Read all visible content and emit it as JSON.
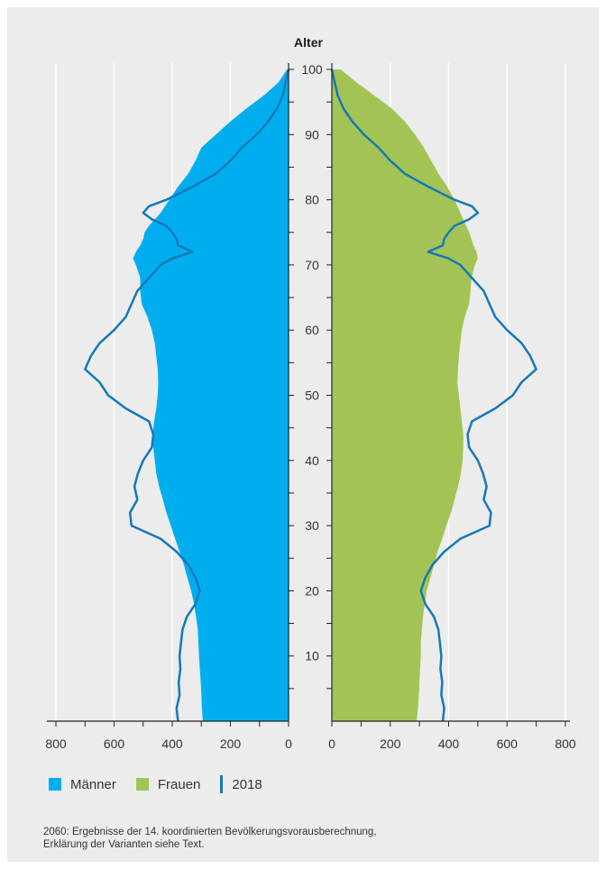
{
  "chart_data": {
    "type": "area",
    "ylabel": "Alter",
    "y_ticks_labeled": [
      10,
      20,
      30,
      40,
      50,
      60,
      70,
      80,
      90,
      100
    ],
    "ylim": [
      0,
      100
    ],
    "xlim_left": [
      800,
      0
    ],
    "xlim_right": [
      0,
      800
    ],
    "x_ticks_left": [
      "800",
      "600",
      "400",
      "200",
      "0"
    ],
    "x_ticks_right": [
      "0",
      "200",
      "400",
      "600",
      "800"
    ],
    "grid": "vertical",
    "legend_position": "bottom-left",
    "series": [
      {
        "name": "Männer",
        "side": "left",
        "kind": "area",
        "color": "#00aeef",
        "ages": [
          0,
          2,
          4,
          6,
          8,
          10,
          12,
          14,
          16,
          18,
          20,
          22,
          24,
          26,
          28,
          30,
          32,
          34,
          36,
          38,
          40,
          42,
          44,
          46,
          48,
          50,
          52,
          54,
          56,
          58,
          60,
          62,
          64,
          66,
          68,
          70,
          71,
          72,
          73,
          74,
          75,
          76,
          78,
          80,
          82,
          84,
          86,
          88,
          90,
          92,
          94,
          96,
          98,
          100
        ],
        "values": [
          295,
          298,
          300,
          302,
          305,
          308,
          310,
          312,
          318,
          325,
          335,
          348,
          360,
          375,
          390,
          405,
          420,
          432,
          445,
          455,
          460,
          465,
          468,
          462,
          455,
          450,
          448,
          450,
          455,
          460,
          470,
          485,
          505,
          510,
          510,
          525,
          535,
          525,
          510,
          500,
          495,
          480,
          440,
          410,
          380,
          345,
          320,
          300,
          250,
          200,
          145,
          85,
          35,
          5
        ]
      },
      {
        "name": "Frauen",
        "side": "right",
        "kind": "area",
        "color": "#a3c454",
        "ages": [
          0,
          2,
          4,
          6,
          8,
          10,
          12,
          14,
          16,
          18,
          20,
          22,
          24,
          26,
          28,
          30,
          32,
          34,
          36,
          38,
          40,
          42,
          44,
          46,
          48,
          50,
          52,
          54,
          56,
          58,
          60,
          62,
          64,
          66,
          68,
          70,
          71,
          72,
          73,
          74,
          75,
          76,
          78,
          80,
          82,
          84,
          86,
          88,
          90,
          92,
          94,
          96,
          98,
          100
        ],
        "values": [
          290,
          295,
          298,
          300,
          302,
          305,
          305,
          308,
          312,
          318,
          325,
          338,
          350,
          362,
          378,
          392,
          408,
          420,
          432,
          442,
          448,
          450,
          450,
          445,
          440,
          435,
          430,
          432,
          435,
          440,
          445,
          455,
          470,
          475,
          478,
          490,
          500,
          495,
          485,
          478,
          470,
          460,
          440,
          420,
          395,
          365,
          340,
          315,
          285,
          250,
          205,
          145,
          85,
          30
        ]
      },
      {
        "name": "2018",
        "kind": "line",
        "color": "#1479b8",
        "ages": [
          0,
          2,
          4,
          6,
          8,
          10,
          12,
          14,
          16,
          18,
          20,
          22,
          24,
          26,
          28,
          30,
          32,
          34,
          36,
          38,
          40,
          42,
          44,
          46,
          48,
          50,
          52,
          54,
          56,
          58,
          60,
          62,
          64,
          66,
          68,
          70,
          71,
          72,
          73,
          74,
          75,
          76,
          77,
          78,
          79,
          80,
          82,
          84,
          86,
          88,
          90,
          92,
          94,
          96,
          98,
          100
        ],
        "values": [
          380,
          385,
          375,
          378,
          372,
          375,
          370,
          365,
          350,
          320,
          305,
          320,
          345,
          385,
          440,
          540,
          545,
          520,
          530,
          518,
          500,
          470,
          465,
          480,
          560,
          620,
          650,
          700,
          680,
          650,
          600,
          560,
          540,
          520,
          480,
          440,
          400,
          330,
          380,
          385,
          400,
          420,
          470,
          500,
          480,
          420,
          330,
          250,
          200,
          160,
          110,
          70,
          40,
          20,
          10,
          0
        ]
      }
    ]
  },
  "legend": {
    "items": [
      {
        "label": "Männer",
        "color": "#00aeef"
      },
      {
        "label": "Frauen",
        "color": "#a3c454"
      },
      {
        "label": "2018",
        "color": "#1479b8"
      }
    ]
  },
  "footnote": {
    "line1": "2060: Ergebnisse der 14. koordinierten Bevölkerungsvorausberechnung,",
    "line2": "Erklärung der Varianten siehe Text."
  }
}
